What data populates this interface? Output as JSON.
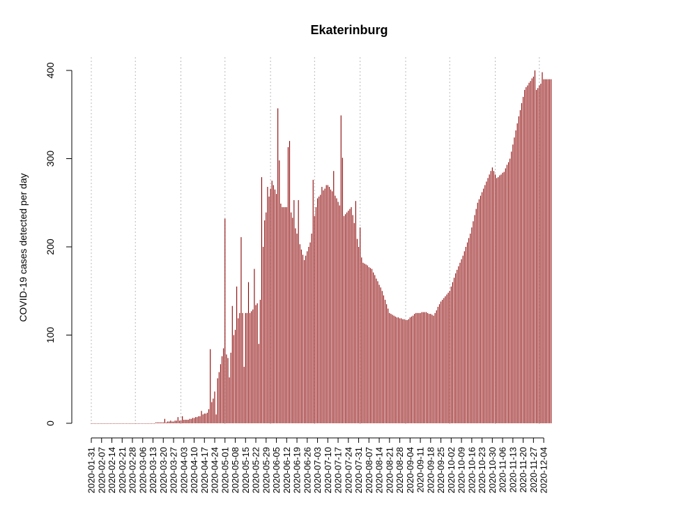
{
  "chart_data": {
    "type": "bar",
    "title": "Ekaterinburg",
    "xlabel": "",
    "ylabel": "COVID-19 cases detected per day",
    "x_start": "2020-01-31",
    "x_end": "2020-12-09",
    "ylim": [
      0,
      400
    ],
    "yticks": [
      0,
      100,
      200,
      300,
      400
    ],
    "xtick_labels": [
      "2020-01-31",
      "2020-02-07",
      "2020-02-14",
      "2020-02-21",
      "2020-02-28",
      "2020-03-06",
      "2020-03-13",
      "2020-03-20",
      "2020-03-27",
      "2020-04-03",
      "2020-04-10",
      "2020-04-17",
      "2020-04-24",
      "2020-05-01",
      "2020-05-08",
      "2020-05-15",
      "2020-05-22",
      "2020-05-29",
      "2020-06-05",
      "2020-06-12",
      "2020-06-19",
      "2020-06-26",
      "2020-07-03",
      "2020-07-10",
      "2020-07-17",
      "2020-07-24",
      "2020-07-31",
      "2020-08-07",
      "2020-08-14",
      "2020-08-21",
      "2020-08-28",
      "2020-09-04",
      "2020-09-11",
      "2020-09-18",
      "2020-09-25",
      "2020-10-02",
      "2020-10-09",
      "2020-10-16",
      "2020-10-23",
      "2020-10-30",
      "2020-11-06",
      "2020-11-13",
      "2020-11-20",
      "2020-11-27",
      "2020-12-04"
    ],
    "gridlines": [
      "2020-01-31",
      "2020-03-01",
      "2020-04-01",
      "2020-05-01",
      "2020-06-01",
      "2020-07-01",
      "2020-08-01",
      "2020-09-01",
      "2020-10-01",
      "2020-11-01",
      "2020-12-01"
    ],
    "grid": "vertical dotted",
    "bar_color": "#8b0000",
    "keyframes": [
      [
        "2020-01-31",
        0
      ],
      [
        "2020-03-10",
        0
      ],
      [
        "2020-03-20",
        1
      ],
      [
        "2020-04-05",
        4
      ],
      [
        "2020-04-12",
        7
      ],
      [
        "2020-04-19",
        12
      ],
      [
        "2020-04-23",
        28
      ],
      [
        "2020-04-27",
        58
      ],
      [
        "2020-04-30",
        85
      ],
      [
        "2020-05-04",
        70
      ],
      [
        "2020-05-07",
        100
      ],
      [
        "2020-05-11",
        125
      ],
      [
        "2020-05-18",
        125
      ],
      [
        "2020-05-25",
        140
      ],
      [
        "2020-05-28",
        230
      ],
      [
        "2020-06-02",
        275
      ],
      [
        "2020-06-05",
        260
      ],
      [
        "2020-06-09",
        245
      ],
      [
        "2020-06-14",
        245
      ],
      [
        "2020-06-19",
        215
      ],
      [
        "2020-06-24",
        185
      ],
      [
        "2020-06-28",
        205
      ],
      [
        "2020-07-03",
        255
      ],
      [
        "2020-07-10",
        270
      ],
      [
        "2020-07-16",
        255
      ],
      [
        "2020-07-21",
        235
      ],
      [
        "2020-07-26",
        245
      ],
      [
        "2020-07-31",
        200
      ],
      [
        "2020-08-03",
        182
      ],
      [
        "2020-08-09",
        175
      ],
      [
        "2020-08-16",
        150
      ],
      [
        "2020-08-21",
        125
      ],
      [
        "2020-08-26",
        120
      ],
      [
        "2020-09-02",
        117
      ],
      [
        "2020-09-08",
        125
      ],
      [
        "2020-09-15",
        126
      ],
      [
        "2020-09-20",
        122
      ],
      [
        "2020-09-25",
        138
      ],
      [
        "2020-10-01",
        150
      ],
      [
        "2020-10-05",
        170
      ],
      [
        "2020-10-10",
        190
      ],
      [
        "2020-10-15",
        215
      ],
      [
        "2020-10-20",
        250
      ],
      [
        "2020-10-25",
        270
      ],
      [
        "2020-10-30",
        290
      ],
      [
        "2020-11-02",
        278
      ],
      [
        "2020-11-07",
        285
      ],
      [
        "2020-11-11",
        300
      ],
      [
        "2020-11-16",
        340
      ],
      [
        "2020-11-21",
        378
      ],
      [
        "2020-11-27",
        393
      ],
      [
        "2020-11-29",
        378
      ],
      [
        "2020-12-04",
        390
      ],
      [
        "2020-12-09",
        390
      ]
    ],
    "overrides": {
      "2020-03-21": 5,
      "2020-03-25": 3,
      "2020-03-30": 7,
      "2020-04-02": 8,
      "2020-04-15": 14,
      "2020-04-21": 84,
      "2020-04-25": 10,
      "2020-05-01": 232,
      "2020-05-04": 52,
      "2020-05-06": 133,
      "2020-05-09": 155,
      "2020-05-12": 211,
      "2020-05-14": 64,
      "2020-05-17": 160,
      "2020-05-21": 175,
      "2020-05-24": 90,
      "2020-05-26": 279,
      "2020-05-30": 268,
      "2020-06-06": 357,
      "2020-06-07": 298,
      "2020-06-13": 313,
      "2020-06-14": 320,
      "2020-06-17": 253,
      "2020-06-20": 253,
      "2020-06-30": 276,
      "2020-07-06": 268,
      "2020-07-09": 270,
      "2020-07-14": 286,
      "2020-07-19": 349,
      "2020-07-20": 301,
      "2020-07-29": 252,
      "2020-08-01": 222,
      "2020-11-28": 400,
      "2020-12-03": 398
    }
  }
}
